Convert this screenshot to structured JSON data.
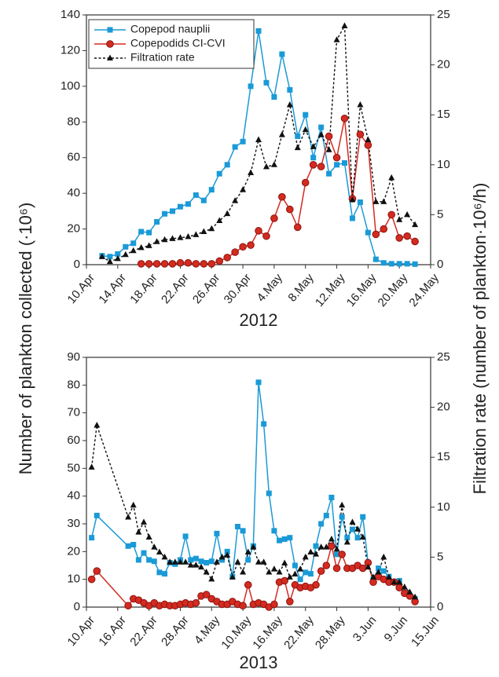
{
  "chart_data": [
    {
      "type": "line",
      "xlabel": "2012",
      "ylabel": "Number of plankton collected (·10⁶)",
      "y2label": "Filtration rate (number of plankton·10⁶/h)",
      "legend": "upper left",
      "xlim": [
        "10.Apr",
        "24.May"
      ],
      "xticks": [
        "10.Apr",
        "14.Apr",
        "18.Apr",
        "22.Apr",
        "26.Apr",
        "30.Apr",
        "4.May",
        "8.May",
        "12.May",
        "16.May",
        "20.May",
        "24.May"
      ],
      "ylim": [
        0,
        140
      ],
      "yticks": [
        0,
        20,
        40,
        60,
        80,
        100,
        120,
        140
      ],
      "y2lim": [
        0,
        25
      ],
      "y2ticks": [
        0,
        5,
        10,
        15,
        20,
        25
      ],
      "x": [
        "12.Apr",
        "13.Apr",
        "14.Apr",
        "15.Apr",
        "16.Apr",
        "17.Apr",
        "18.Apr",
        "19.Apr",
        "20.Apr",
        "21.Apr",
        "22.Apr",
        "23.Apr",
        "24.Apr",
        "25.Apr",
        "26.Apr",
        "27.Apr",
        "28.Apr",
        "29.Apr",
        "30.Apr",
        "1.May",
        "2.May",
        "3.May",
        "4.May",
        "5.May",
        "6.May",
        "7.May",
        "8.May",
        "9.May",
        "10.May",
        "11.May",
        "12.May",
        "13.May",
        "14.May",
        "15.May",
        "16.May",
        "17.May",
        "18.May",
        "19.May",
        "20.May",
        "21.May",
        "22.May"
      ],
      "series": [
        {
          "name": "Copepod nauplii",
          "color": "#1a9ad6",
          "marker": "square",
          "linestyle": "solid",
          "axis": "y",
          "values": [
            5,
            4.5,
            6,
            10,
            12,
            18.5,
            18,
            24,
            28.5,
            30,
            32.5,
            34,
            39,
            36,
            42,
            51,
            56,
            66,
            69,
            100,
            131,
            102,
            94,
            118,
            98,
            72,
            84,
            60,
            77,
            51,
            56,
            57,
            26,
            35,
            18,
            3,
            1,
            0.5,
            0.5,
            0.5,
            0.3
          ]
        },
        {
          "name": "Copepodids CI-CVI",
          "color": "#d42a20",
          "marker": "circle",
          "linestyle": "solid",
          "axis": "y",
          "values": [
            null,
            null,
            null,
            null,
            null,
            0.5,
            0.5,
            0.5,
            0.5,
            0.5,
            1,
            1,
            0.5,
            0.5,
            0.5,
            2,
            4,
            7,
            10,
            11,
            19,
            16,
            26,
            38,
            31,
            21,
            46,
            56,
            55,
            72,
            60,
            82,
            37,
            73,
            67,
            17,
            20,
            28,
            15,
            16,
            13
          ]
        },
        {
          "name": "Filtration rate",
          "color": "#111111",
          "marker": "triangle",
          "linestyle": "dashed",
          "axis": "y2",
          "values": [
            0.8,
            0.3,
            0.6,
            1,
            1.4,
            1.7,
            1.9,
            2.3,
            2.5,
            2.6,
            2.7,
            2.8,
            3,
            3.3,
            3.6,
            4.4,
            5.1,
            6.4,
            7.5,
            9.2,
            12.5,
            9.8,
            10,
            13,
            16,
            11.7,
            13.5,
            11.8,
            13,
            11.5,
            22.5,
            23.9,
            6.5,
            16,
            12.5,
            6.3,
            6.3,
            8.7,
            4.5,
            5,
            4
          ]
        }
      ]
    },
    {
      "type": "line",
      "xlabel": "2013",
      "legend": false,
      "xlim": [
        "10.Apr",
        "15.Jun"
      ],
      "xticks": [
        "10.Apr",
        "16.Apr",
        "22.Apr",
        "28.Apr",
        "4.May",
        "10.May",
        "16.May",
        "22.May",
        "28.May",
        "3.Jun",
        "9.Jun",
        "15.Jun"
      ],
      "ylim": [
        0,
        90
      ],
      "yticks": [
        0,
        10,
        20,
        30,
        40,
        50,
        60,
        70,
        80,
        90
      ],
      "y2lim": [
        0,
        25
      ],
      "y2ticks": [
        0,
        5,
        10,
        15,
        20,
        25
      ],
      "x": [
        "11.Apr",
        "12.Apr",
        "18.Apr",
        "19.Apr",
        "20.Apr",
        "21.Apr",
        "22.Apr",
        "23.Apr",
        "24.Apr",
        "25.Apr",
        "26.Apr",
        "27.Apr",
        "28.Apr",
        "29.Apr",
        "30.Apr",
        "1.May",
        "2.May",
        "3.May",
        "4.May",
        "5.May",
        "6.May",
        "7.May",
        "8.May",
        "9.May",
        "10.May",
        "11.May",
        "12.May",
        "13.May",
        "14.May",
        "15.May",
        "16.May",
        "17.May",
        "18.May",
        "19.May",
        "20.May",
        "21.May",
        "22.May",
        "23.May",
        "24.May",
        "25.May",
        "26.May",
        "27.May",
        "28.May",
        "29.May",
        "30.May",
        "31.May",
        "1.Jun",
        "2.Jun",
        "3.Jun",
        "4.Jun",
        "5.Jun",
        "6.Jun",
        "7.Jun",
        "8.Jun",
        "9.Jun",
        "10.Jun",
        "11.Jun",
        "12.Jun"
      ],
      "series": [
        {
          "color": "#1a9ad6",
          "marker": "square",
          "linestyle": "solid",
          "axis": "y",
          "values": [
            25,
            33,
            22,
            22.5,
            17,
            19.5,
            17,
            16.5,
            12.5,
            12,
            16,
            15.5,
            17,
            25.5,
            17,
            17.5,
            16.5,
            16,
            16.5,
            26.5,
            17,
            20,
            11,
            29,
            27.5,
            17,
            22,
            81,
            66,
            41,
            27.5,
            24,
            24.5,
            25,
            15,
            10,
            12.5,
            12,
            22,
            30,
            33,
            39.5,
            19,
            32.5,
            25,
            28,
            25,
            32.5,
            16,
            10,
            14,
            13,
            11,
            9,
            9.5,
            5,
            4,
            3
          ]
        },
        {
          "color": "#d42a20",
          "marker": "circle",
          "linestyle": "solid",
          "axis": "y",
          "values": [
            10,
            13,
            0.5,
            3,
            2.5,
            1.5,
            0.5,
            1.5,
            0.5,
            1,
            0.5,
            0.5,
            1,
            1.5,
            1,
            1.5,
            4,
            4.5,
            3,
            2,
            1,
            1,
            2,
            1,
            0.5,
            8,
            1,
            1.5,
            1,
            0,
            1,
            9,
            9.5,
            2,
            8,
            7,
            7.5,
            7,
            8,
            13,
            15,
            22,
            14,
            19,
            14,
            14,
            15,
            14,
            16,
            9,
            11,
            10,
            9,
            9,
            7,
            5,
            4,
            2
          ]
        },
        {
          "color": "#111111",
          "marker": "triangle",
          "linestyle": "dashed",
          "axis": "y2",
          "values": [
            14,
            18.2,
            9,
            10.2,
            7.5,
            8.5,
            7,
            6,
            5.5,
            5,
            4.5,
            4.5,
            4.5,
            4.5,
            4.2,
            4.2,
            4,
            3.5,
            2.8,
            4.5,
            5,
            5.2,
            3,
            4.5,
            3.5,
            5.5,
            6,
            4.5,
            4.5,
            3.5,
            3.8,
            3.5,
            4.4,
            3,
            3.3,
            3.8,
            5,
            5.5,
            5.3,
            6,
            6,
            6.8,
            5.8,
            10.2,
            6.5,
            8.5,
            7.8,
            7,
            4,
            3,
            3.5,
            5,
            3,
            2.5,
            2.5,
            2,
            1.5,
            1
          ]
        }
      ]
    }
  ]
}
